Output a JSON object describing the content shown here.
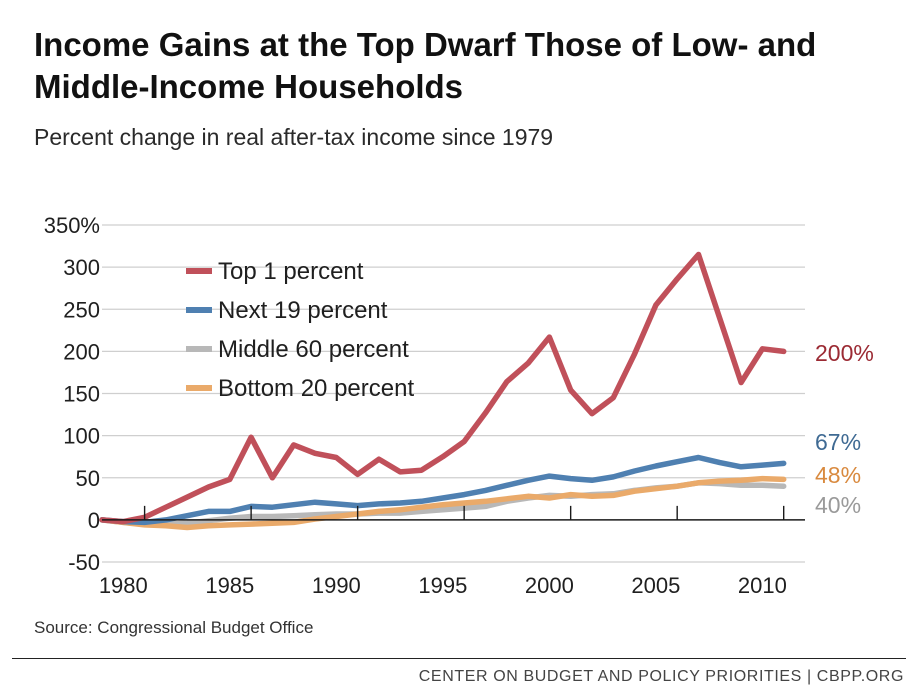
{
  "header": {
    "title": "Income Gains at the Top Dwarf Those of Low- and Middle-Income Households",
    "subtitle": "Percent change in real after-tax income since 1979"
  },
  "source": "Source: Congressional Budget Office",
  "footer": "CENTER ON BUDGET AND POLICY PRIORITIES | CBPP.ORG",
  "chart_data": {
    "type": "line",
    "title": "Income Gains at the Top Dwarf Those of Low- and Middle-Income Households",
    "subtitle": "Percent change in real after-tax income since 1979",
    "xlabel": "",
    "ylabel": "",
    "x": [
      1979,
      1980,
      1981,
      1982,
      1983,
      1984,
      1985,
      1986,
      1987,
      1988,
      1989,
      1990,
      1991,
      1992,
      1993,
      1994,
      1995,
      1996,
      1997,
      1998,
      1999,
      2000,
      2001,
      2002,
      2003,
      2004,
      2005,
      2006,
      2007,
      2008,
      2009,
      2010,
      2011
    ],
    "xlim": [
      1979,
      2012
    ],
    "ylim": [
      -50,
      350
    ],
    "y_ticks": [
      -50,
      0,
      50,
      100,
      150,
      200,
      250,
      300,
      350
    ],
    "y_tick_labels": [
      "-50",
      "0",
      "50",
      "100",
      "150",
      "200",
      "250",
      "300",
      "350%"
    ],
    "x_ticks": [
      1980,
      1985,
      1990,
      1995,
      2000,
      2005,
      2010
    ],
    "x_tick_labels": [
      "1980",
      "1985",
      "1990",
      "1995",
      "2000",
      "2005",
      "2010"
    ],
    "grid": true,
    "legend_position": "top-left",
    "series": [
      {
        "name": "Top 1 percent",
        "color": "#c0505a",
        "values": [
          0,
          -2,
          3,
          15,
          27,
          39,
          48,
          98,
          50,
          89,
          79,
          74,
          54,
          72,
          57,
          59,
          75,
          93,
          127,
          164,
          186,
          217,
          154,
          126,
          145,
          197,
          255,
          286,
          315,
          239,
          163,
          203,
          200
        ],
        "end_label": "200%"
      },
      {
        "name": "Next 19 percent",
        "color": "#4f80b1",
        "values": [
          0,
          -2,
          -3,
          0,
          5,
          10,
          10,
          16,
          15,
          18,
          21,
          19,
          17,
          19,
          20,
          22,
          26,
          30,
          35,
          41,
          47,
          52,
          49,
          47,
          51,
          58,
          64,
          69,
          74,
          68,
          63,
          65,
          67
        ],
        "end_label": "67%"
      },
      {
        "name": "Middle 60 percent",
        "color": "#b8b8b8",
        "values": [
          0,
          -3,
          -5,
          -5,
          -4,
          -1,
          2,
          4,
          4,
          5,
          6,
          7,
          7,
          8,
          8,
          10,
          12,
          14,
          16,
          22,
          26,
          29,
          28,
          30,
          31,
          35,
          38,
          40,
          44,
          43,
          41,
          41,
          40
        ],
        "end_label": "40%"
      },
      {
        "name": "Bottom 20 percent",
        "color": "#eaaa6a",
        "values": [
          0,
          -3,
          -6,
          -7,
          -9,
          -7,
          -6,
          -5,
          -4,
          -3,
          1,
          4,
          7,
          10,
          12,
          15,
          18,
          20,
          22,
          25,
          28,
          26,
          30,
          28,
          29,
          34,
          37,
          40,
          44,
          46,
          47,
          49,
          48
        ],
        "end_label": "48%"
      }
    ],
    "end_label_colors": [
      "#9b2a33",
      "#3f6a93",
      "#9a9a9a",
      "#d98a3f"
    ]
  }
}
